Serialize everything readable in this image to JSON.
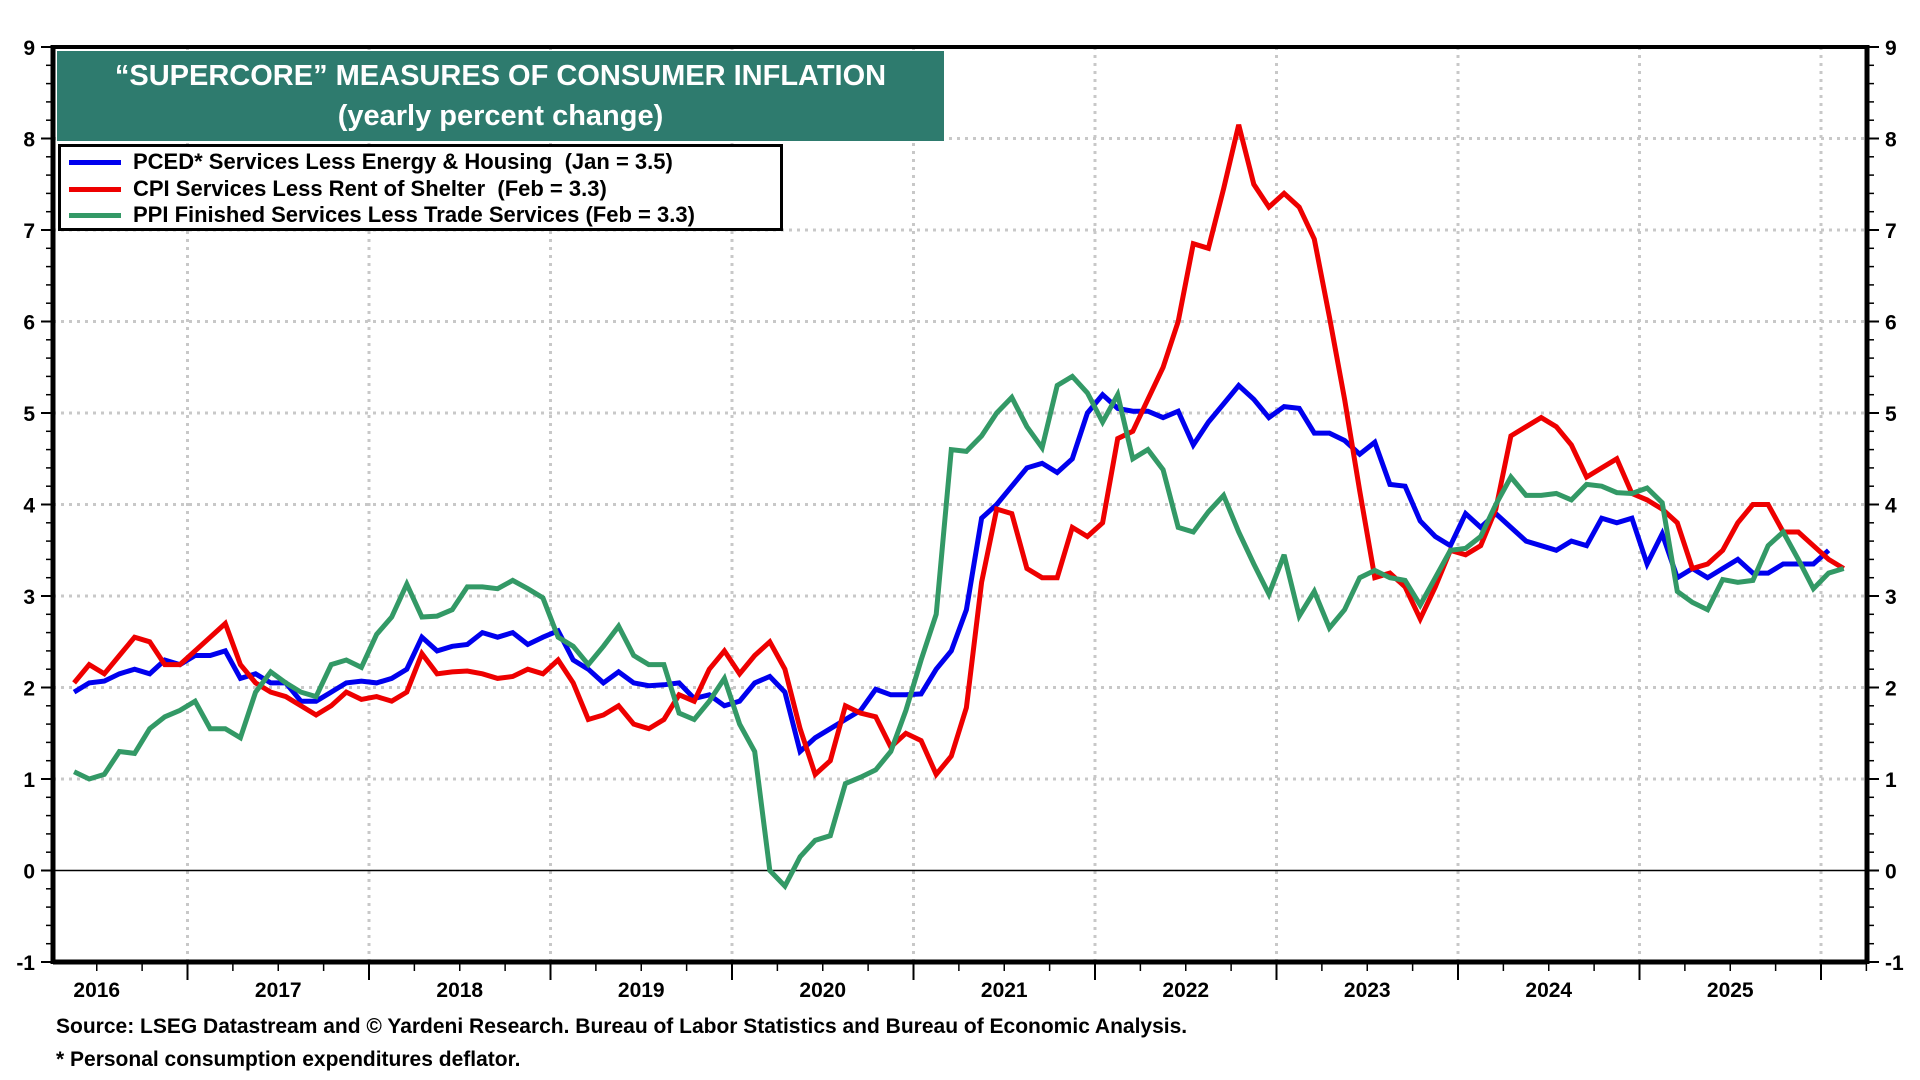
{
  "chart_data": {
    "type": "line",
    "title": "“SUPERCORE” MEASURES OF CONSUMER INFLATION",
    "subtitle": "(yearly percent change)",
    "xlabel": "",
    "ylabel": "",
    "ylim": [
      -1,
      9
    ],
    "yticks": [
      "-1",
      "0",
      "1",
      "2",
      "3",
      "4",
      "5",
      "6",
      "7",
      "8",
      "9"
    ],
    "xlim": [
      "2016-04",
      "2026-04"
    ],
    "x_start": "2016-05",
    "frequency": "monthly",
    "year_labels": [
      "2016",
      "2017",
      "2018",
      "2019",
      "2020",
      "2021",
      "2022",
      "2023",
      "2024",
      "2025"
    ],
    "grid": true,
    "legend_position": "top-left",
    "reference_line": 0,
    "series": [
      {
        "name": "PCED* Services Less Energy & Housing  (Jan = 3.5)",
        "color": "#0000ee",
        "values": [
          1.95,
          2.05,
          2.07,
          2.15,
          2.2,
          2.15,
          2.3,
          2.25,
          2.35,
          2.35,
          2.4,
          2.1,
          2.15,
          2.05,
          2.05,
          1.85,
          1.85,
          1.95,
          2.05,
          2.07,
          2.05,
          2.1,
          2.2,
          2.55,
          2.4,
          2.45,
          2.47,
          2.6,
          2.55,
          2.6,
          2.47,
          2.55,
          2.62,
          2.3,
          2.2,
          2.05,
          2.17,
          2.05,
          2.02,
          2.03,
          2.05,
          1.88,
          1.92,
          1.8,
          1.85,
          2.05,
          2.12,
          1.95,
          1.3,
          1.45,
          1.55,
          1.65,
          1.75,
          1.98,
          1.92,
          1.92,
          1.93,
          2.2,
          2.4,
          2.85,
          3.85,
          4.0,
          4.2,
          4.4,
          4.45,
          4.35,
          4.5,
          5.0,
          5.2,
          5.05,
          5.02,
          5.02,
          4.95,
          5.02,
          4.65,
          4.9,
          5.1,
          5.3,
          5.15,
          4.95,
          5.07,
          5.05,
          4.78,
          4.78,
          4.7,
          4.55,
          4.68,
          4.22,
          4.2,
          3.82,
          3.65,
          3.55,
          3.9,
          3.75,
          3.9,
          3.75,
          3.6,
          3.55,
          3.5,
          3.6,
          3.55,
          3.85,
          3.8,
          3.85,
          3.35,
          3.68,
          3.2,
          3.3,
          3.2,
          3.3,
          3.4,
          3.25,
          3.25,
          3.35,
          3.35,
          3.35,
          3.5
        ]
      },
      {
        "name": "CPI Services Less Rent of Shelter  (Feb = 3.3)",
        "color": "#ee0000",
        "values": [
          2.05,
          2.25,
          2.15,
          2.35,
          2.55,
          2.5,
          2.25,
          2.25,
          2.4,
          2.55,
          2.7,
          2.25,
          2.05,
          1.95,
          1.9,
          1.8,
          1.7,
          1.8,
          1.95,
          1.87,
          1.9,
          1.85,
          1.95,
          2.37,
          2.15,
          2.17,
          2.18,
          2.15,
          2.1,
          2.12,
          2.2,
          2.15,
          2.3,
          2.05,
          1.65,
          1.7,
          1.8,
          1.6,
          1.55,
          1.65,
          1.92,
          1.85,
          2.2,
          2.4,
          2.15,
          2.35,
          2.5,
          2.2,
          1.55,
          1.05,
          1.2,
          1.8,
          1.72,
          1.68,
          1.35,
          1.5,
          1.42,
          1.05,
          1.25,
          1.78,
          3.15,
          3.95,
          3.9,
          3.3,
          3.2,
          3.2,
          3.75,
          3.65,
          3.8,
          4.72,
          4.8,
          5.15,
          5.5,
          6.0,
          6.85,
          6.8,
          7.45,
          8.15,
          7.5,
          7.25,
          7.4,
          7.25,
          6.9,
          6.05,
          5.15,
          4.15,
          3.2,
          3.25,
          3.1,
          2.75,
          3.1,
          3.5,
          3.45,
          3.55,
          3.95,
          4.75,
          4.85,
          4.95,
          4.85,
          4.65,
          4.3,
          4.4,
          4.5,
          4.12,
          4.05,
          3.95,
          3.8,
          3.3,
          3.35,
          3.5,
          3.8,
          4.0,
          4.0,
          3.7,
          3.7,
          3.55,
          3.4,
          3.3
        ]
      },
      {
        "name": "PPI Finished Services Less Trade Services (Feb = 3.3)",
        "color": "#339966",
        "values": [
          1.08,
          1.0,
          1.05,
          1.3,
          1.28,
          1.55,
          1.68,
          1.75,
          1.85,
          1.55,
          1.55,
          1.45,
          1.95,
          2.17,
          2.05,
          1.95,
          1.9,
          2.25,
          2.3,
          2.22,
          2.58,
          2.77,
          3.13,
          2.77,
          2.78,
          2.85,
          3.1,
          3.1,
          3.08,
          3.17,
          3.08,
          2.98,
          2.55,
          2.45,
          2.25,
          2.45,
          2.67,
          2.35,
          2.25,
          2.25,
          1.72,
          1.65,
          1.85,
          2.1,
          1.6,
          1.3,
          0.0,
          -0.17,
          0.15,
          0.33,
          0.38,
          0.95,
          1.02,
          1.1,
          1.3,
          1.75,
          2.3,
          2.8,
          4.6,
          4.58,
          4.75,
          5.0,
          5.17,
          4.85,
          4.62,
          5.3,
          5.4,
          5.22,
          4.9,
          5.2,
          4.5,
          4.6,
          4.38,
          3.75,
          3.7,
          3.92,
          4.1,
          3.7,
          3.35,
          3.02,
          3.45,
          2.78,
          3.05,
          2.65,
          2.85,
          3.2,
          3.28,
          3.2,
          3.17,
          2.9,
          3.2,
          3.5,
          3.52,
          3.65,
          4.0,
          4.3,
          4.1,
          4.1,
          4.12,
          4.05,
          4.22,
          4.2,
          4.13,
          4.12,
          4.18,
          4.02,
          3.05,
          2.93,
          2.85,
          3.18,
          3.15,
          3.17,
          3.55,
          3.7,
          3.4,
          3.08,
          3.25,
          3.3
        ]
      }
    ],
    "source": "Source: LSEG Datastream and © Yardeni Research. Bureau of Labor Statistics and Bureau of Economic Analysis.",
    "footnote": "* Personal consumption expenditures deflator."
  },
  "colors": {
    "title_bg": "#2e7b6e",
    "grid": "#c8c8c8"
  }
}
